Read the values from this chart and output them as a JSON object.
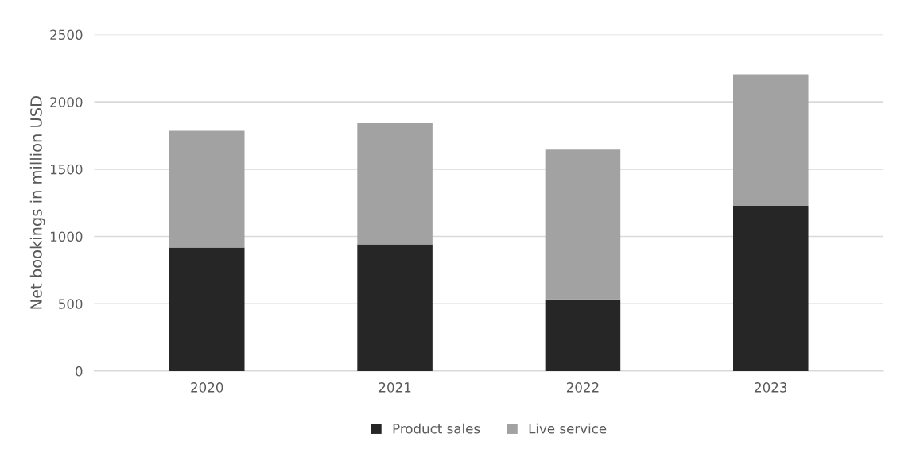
{
  "chart_data": {
    "type": "bar",
    "stacked": true,
    "ylabel": "Net bookings in million USD",
    "categories": [
      "2020",
      "2021",
      "2022",
      "2023"
    ],
    "series": [
      {
        "name": "Product sales",
        "color": "#262626",
        "values": [
          918,
          941,
          532,
          1228
        ]
      },
      {
        "name": "Live service",
        "color": "#a2a2a2",
        "values": [
          868,
          900,
          1113,
          977
        ]
      }
    ],
    "ylim": [
      0,
      2500
    ],
    "yticks": [
      0,
      500,
      1000,
      1500,
      2000,
      2500
    ],
    "grid": "y",
    "legend": "bottom"
  }
}
